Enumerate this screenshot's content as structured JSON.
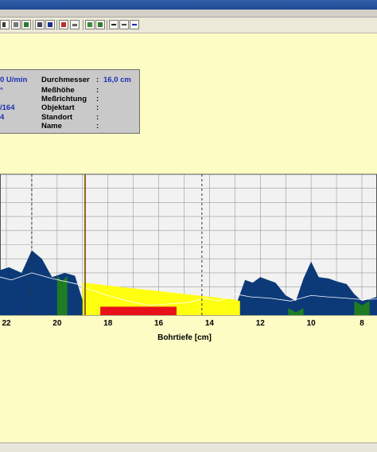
{
  "toolbar": {
    "icons": [
      "pointer-icon",
      "print-icon",
      "color-icon",
      "zoom-icon",
      "copy-icon",
      "chart-icon",
      "grid-icon",
      "table-icon",
      "list-icon",
      "export-icon"
    ]
  },
  "info": {
    "speed_value": "0 U/min",
    "speed_line2": "°",
    "speed_line3": "/164",
    "speed_line4": "4",
    "durchmesser_label": "Durchmesser",
    "durchmesser_value": "16,0 cm",
    "messhoehe_label": "Meßhöhe",
    "messrichtung_label": "Meßrichtung",
    "objektart_label": "Objektart",
    "standort_label": "Standort",
    "name_label": "Name",
    "colon": ":"
  },
  "chart_data": {
    "type": "area",
    "xlabel": "Bohrtiefe [cm]",
    "x_ticks": [
      "22",
      "20",
      "18",
      "16",
      "14",
      "12",
      "10",
      "8"
    ],
    "xlim": [
      23.8,
      6.8
    ],
    "x_reversed": true,
    "grid": true,
    "markers": {
      "dashed": [
        21.0,
        14.3
      ],
      "solid": [
        18.9
      ]
    },
    "series": [
      {
        "color": "#0c3a78",
        "x": [
          22.7,
          22.4,
          21.9,
          21.4,
          21.0,
          20.6,
          20.2,
          19.7,
          19.3,
          18.9,
          18.6,
          18.2,
          17.8,
          17.4,
          17.0,
          16.6,
          16.2,
          15.8,
          15.4,
          15.0,
          14.6,
          14.2,
          13.8,
          13.4,
          13.0,
          12.6,
          12.3,
          12.0,
          11.7,
          11.4,
          11.0,
          10.6,
          10.3,
          10.0,
          9.7,
          9.3,
          9.0,
          8.6,
          8.3,
          8.0,
          7.6,
          7.2,
          6.8
        ],
        "y": [
          30,
          31,
          34,
          30,
          46,
          40,
          27,
          30,
          28,
          5,
          0,
          0,
          0,
          0,
          0,
          0,
          0,
          0,
          0,
          0,
          0,
          0,
          0,
          0,
          5,
          25,
          23,
          27,
          25,
          23,
          14,
          10,
          26,
          38,
          27,
          26,
          24,
          22,
          15,
          10,
          12,
          14,
          16
        ]
      },
      {
        "color": "#ffff10",
        "x": [
          19.0,
          18.5,
          18.0,
          17.5,
          17.0,
          16.5,
          16.0,
          15.5,
          15.0,
          14.5,
          14.0,
          13.5,
          13.0,
          12.8
        ],
        "y": [
          23,
          22,
          21,
          20,
          19,
          18,
          17,
          16,
          15,
          14,
          13,
          12,
          11,
          10
        ]
      },
      {
        "color": "#e8111a",
        "x": [
          18.3,
          15.3
        ],
        "y": [
          6,
          6
        ]
      },
      {
        "color": "#1e7d23",
        "x": [
          20.0,
          19.8,
          19.6,
          10.9,
          10.6,
          10.3,
          8.3,
          8.0,
          7.7
        ],
        "y": [
          28,
          24,
          28,
          5,
          2,
          5,
          10,
          7,
          10
        ]
      }
    ],
    "ylim": [
      0,
      100
    ]
  }
}
